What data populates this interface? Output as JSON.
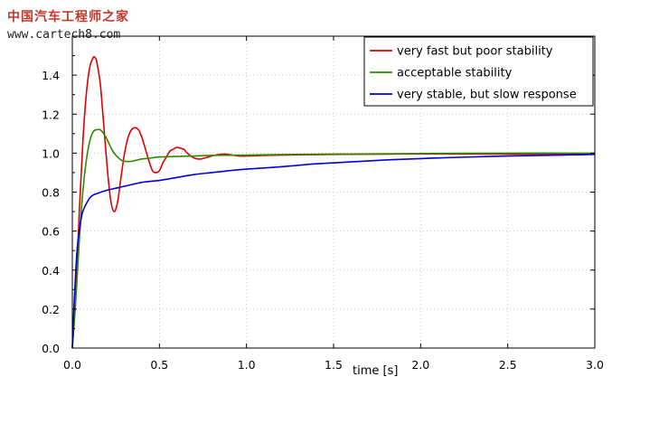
{
  "watermark": {
    "site_name": "中国汽车工程师之家",
    "site_url": "www.cartech8.com"
  },
  "chart_data": {
    "type": "line",
    "title": "",
    "xlabel": "time [s]",
    "ylabel": "",
    "xlim": [
      0,
      3.0
    ],
    "ylim": [
      0,
      1.6
    ],
    "x_ticks": [
      "0.0",
      "0.5",
      "1.0",
      "1.5",
      "2.0",
      "2.5",
      "3.0"
    ],
    "y_ticks": [
      "0.0",
      "0.2",
      "0.4",
      "0.6",
      "0.8",
      "1.0",
      "1.2",
      "1.4"
    ],
    "grid": true,
    "legend_position": "top-right",
    "series": [
      {
        "name": "very fast but poor stability",
        "color": "#e00000",
        "x": [
          0,
          0.02,
          0.04,
          0.06,
          0.08,
          0.1,
          0.12,
          0.13,
          0.14,
          0.16,
          0.18,
          0.2,
          0.22,
          0.24,
          0.26,
          0.28,
          0.3,
          0.32,
          0.34,
          0.36,
          0.38,
          0.39,
          0.4,
          0.42,
          0.44,
          0.46,
          0.48,
          0.5,
          0.52,
          0.54,
          0.56,
          0.58,
          0.6,
          0.62,
          0.64,
          0.65,
          0.66,
          0.68,
          0.7,
          0.72,
          0.74,
          0.76,
          0.78,
          0.8,
          0.84,
          0.88,
          0.92,
          0.96,
          1.0,
          1.1,
          1.2,
          1.4,
          1.6,
          1.8,
          2.0,
          2.5,
          3.0
        ],
        "y": [
          0,
          0.27,
          0.7,
          1.05,
          1.3,
          1.44,
          1.49,
          1.49,
          1.47,
          1.36,
          1.15,
          0.93,
          0.76,
          0.7,
          0.75,
          0.88,
          1.0,
          1.08,
          1.12,
          1.13,
          1.12,
          1.1,
          1.08,
          1.02,
          0.96,
          0.91,
          0.9,
          0.91,
          0.95,
          0.98,
          1.01,
          1.02,
          1.03,
          1.025,
          1.02,
          1.01,
          1.0,
          0.985,
          0.975,
          0.97,
          0.97,
          0.975,
          0.98,
          0.985,
          0.993,
          0.995,
          0.99,
          0.985,
          0.985,
          0.988,
          0.99,
          0.992,
          0.994,
          0.995,
          0.996,
          0.995,
          0.995
        ]
      },
      {
        "name": "acceptable stability",
        "color": "#2e8b00",
        "x": [
          0,
          0.02,
          0.04,
          0.06,
          0.08,
          0.1,
          0.12,
          0.14,
          0.16,
          0.18,
          0.2,
          0.22,
          0.24,
          0.26,
          0.28,
          0.3,
          0.32,
          0.34,
          0.36,
          0.38,
          0.4,
          0.45,
          0.5,
          0.6,
          0.7,
          0.8,
          1.0,
          1.2,
          1.5,
          2.0,
          2.5,
          3.0
        ],
        "y": [
          0,
          0.25,
          0.55,
          0.8,
          0.96,
          1.06,
          1.11,
          1.12,
          1.12,
          1.1,
          1.07,
          1.03,
          1.0,
          0.98,
          0.965,
          0.958,
          0.957,
          0.958,
          0.962,
          0.966,
          0.97,
          0.975,
          0.98,
          0.983,
          0.985,
          0.988,
          0.99,
          0.993,
          0.995,
          0.998,
          1.0,
          1.0
        ]
      },
      {
        "name": "very stable, but slow response",
        "color": "#0000dd",
        "x": [
          0,
          0.01,
          0.02,
          0.03,
          0.04,
          0.05,
          0.06,
          0.08,
          0.1,
          0.12,
          0.15,
          0.2,
          0.3,
          0.4,
          0.5,
          0.6,
          0.7,
          0.8,
          0.9,
          1.0,
          1.2,
          1.4,
          1.6,
          1.8,
          2.0,
          2.2,
          2.5,
          2.8,
          3.0
        ],
        "y": [
          0,
          0.22,
          0.4,
          0.53,
          0.6,
          0.66,
          0.7,
          0.74,
          0.77,
          0.785,
          0.795,
          0.81,
          0.83,
          0.85,
          0.86,
          0.875,
          0.89,
          0.9,
          0.91,
          0.918,
          0.93,
          0.945,
          0.955,
          0.965,
          0.972,
          0.978,
          0.985,
          0.99,
          0.993
        ]
      }
    ]
  }
}
